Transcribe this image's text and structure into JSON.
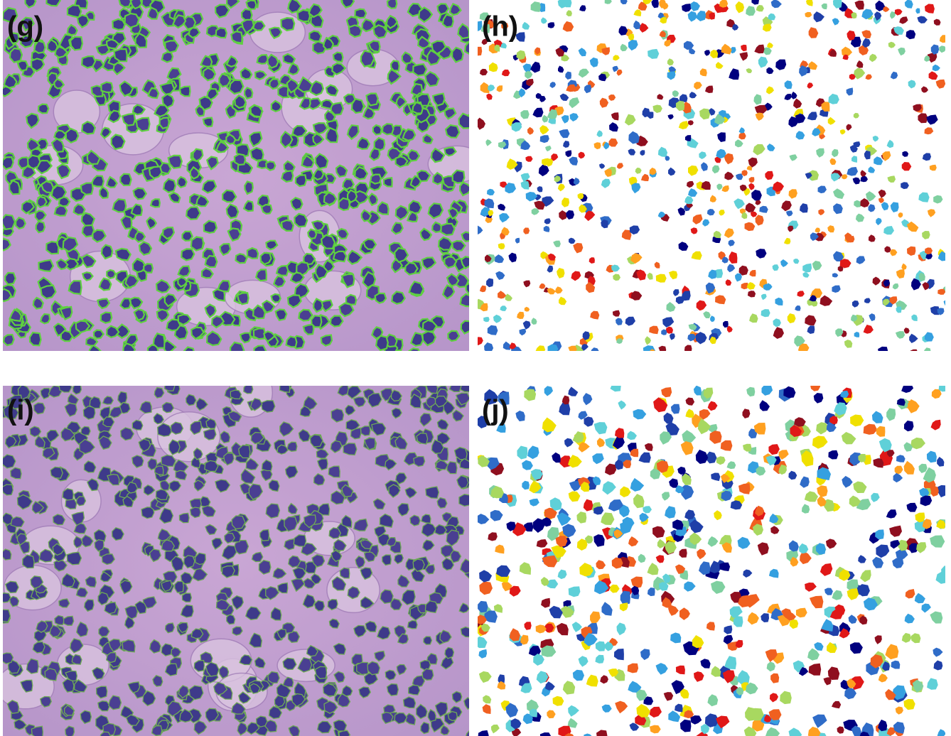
{
  "panels": [
    {
      "label": "(g)"
    },
    {
      "label": "(h)"
    },
    {
      "label": "(i)"
    },
    {
      "label": "(j)"
    }
  ]
}
